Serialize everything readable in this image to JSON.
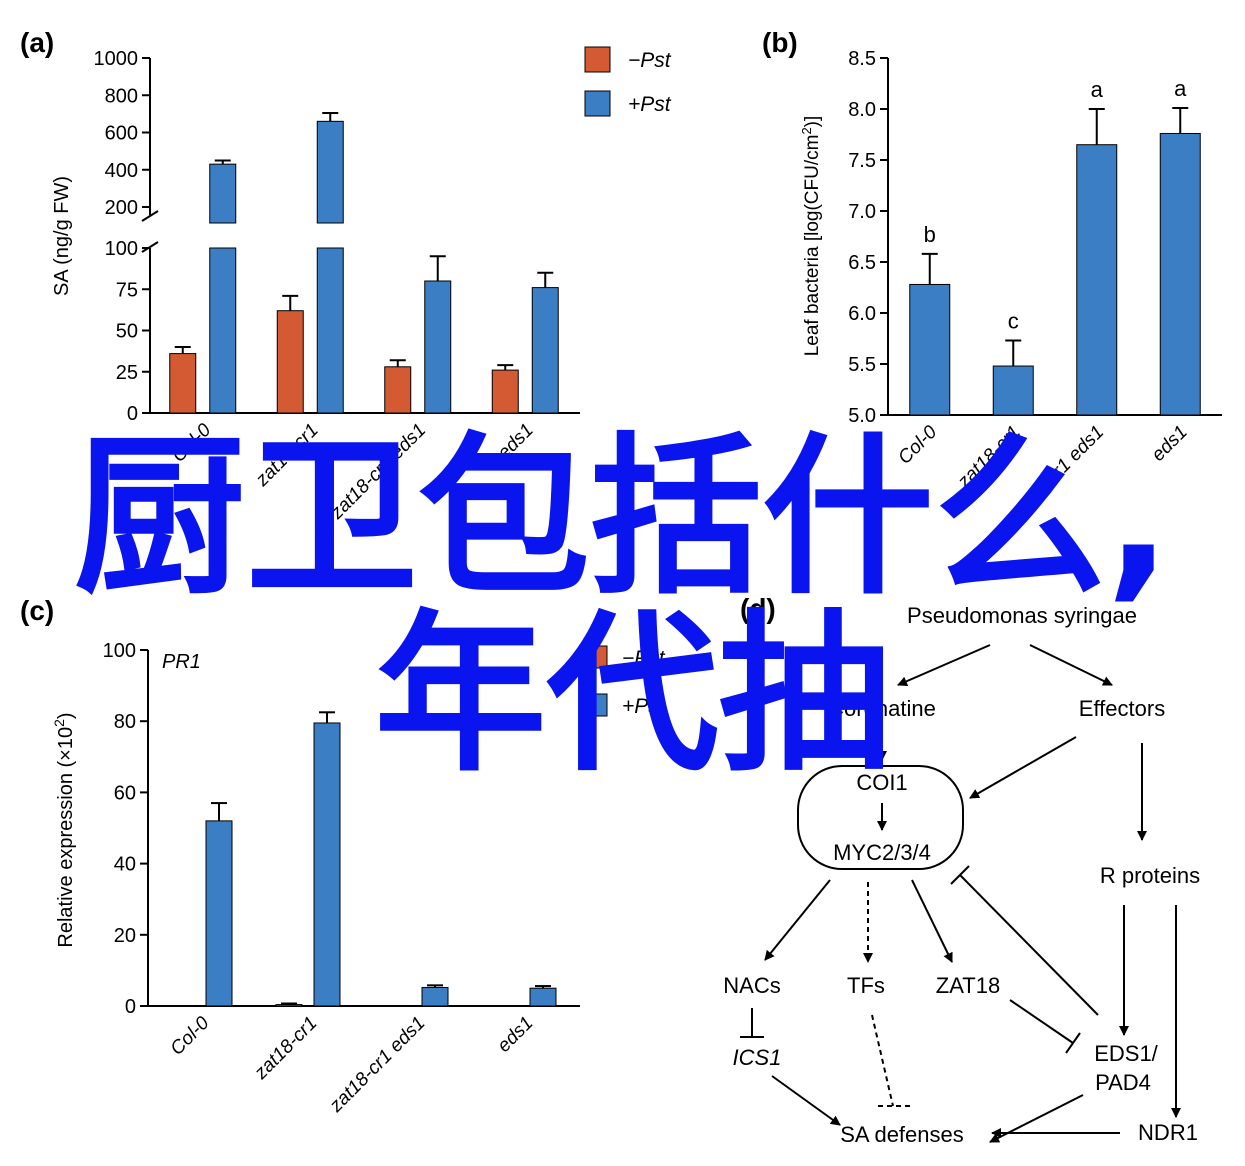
{
  "colors": {
    "minus_pst": "#d35a33",
    "plus_pst": "#3c7ec4",
    "overlay": "#0a14ee"
  },
  "overlay": {
    "line1": "厨卫包括什么,",
    "line2": "年代抽"
  },
  "chart_data": [
    {
      "panel": "(a)",
      "type": "bar",
      "ylabel": "SA (ng/g FW)",
      "categories": [
        "Col-0",
        "zat18-cr1",
        "zat18-cr1 eds1",
        "eds1"
      ],
      "series": [
        {
          "name": "−Pst",
          "values": [
            36,
            62,
            28,
            26
          ],
          "errors": [
            4,
            9,
            4,
            3
          ]
        },
        {
          "name": "+Pst",
          "values": [
            430,
            660,
            80,
            76
          ],
          "errors": [
            20,
            45,
            15,
            9
          ]
        }
      ],
      "axis_break": true,
      "yticks": [
        0,
        25,
        50,
        75,
        100,
        200,
        400,
        600,
        800,
        1000
      ],
      "legend_position": "top-right"
    },
    {
      "panel": "(b)",
      "type": "bar",
      "ylabel": "Leaf bacteria [log(CFU/cm2)]",
      "categories": [
        "Col-0",
        "zat18-cr1",
        "zat18-cr1 eds1",
        "eds1"
      ],
      "series": [
        {
          "values": [
            6.28,
            5.48,
            7.65,
            7.76
          ],
          "errors": [
            0.3,
            0.25,
            0.35,
            0.25
          ]
        }
      ],
      "letters": [
        "b",
        "c",
        "a",
        "a"
      ],
      "ylim": [
        5.0,
        8.5
      ],
      "yticks": [
        5.0,
        5.5,
        6.0,
        6.5,
        7.0,
        7.5,
        8.0,
        8.5
      ]
    },
    {
      "panel": "(c)",
      "type": "bar",
      "title": "PR1",
      "ylabel": "Relative expression (×102)",
      "categories": [
        "Col-0",
        "zat18-cr1",
        "zat18-cr1 eds1",
        "eds1"
      ],
      "series": [
        {
          "name": "−Pst",
          "values": [
            0,
            0.4,
            0,
            0
          ],
          "errors": [
            0,
            0.3,
            0,
            0
          ]
        },
        {
          "name": "+Pst",
          "values": [
            52,
            79.5,
            5.2,
            5
          ],
          "errors": [
            5,
            3,
            0.6,
            0.6
          ]
        }
      ],
      "ylim": [
        0,
        100
      ],
      "yticks": [
        0,
        20,
        40,
        60,
        80,
        100
      ],
      "legend_position": "top-center"
    }
  ],
  "diagram": {
    "panel": "(d)",
    "nodes": {
      "pathogen": "Pseudomonas syringae",
      "coronatine": "Coronatine",
      "effectors": "Effectors",
      "coi1": "COI1",
      "myc": "MYC2/3/4",
      "r_proteins": "R proteins",
      "nacs": "NACs",
      "tfs": "TFs",
      "zat18": "ZAT18",
      "ics1": "ICS1",
      "eds1": "EDS1/",
      "pad4": "PAD4",
      "sa_defenses": "SA defenses",
      "ndr1": "NDR1"
    }
  }
}
